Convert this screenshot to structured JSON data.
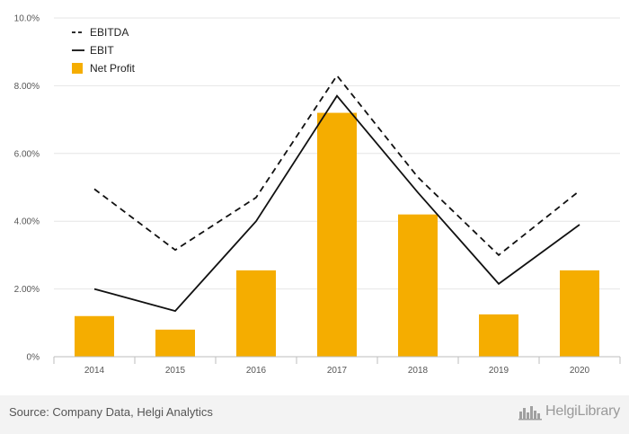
{
  "chart_data": {
    "type": "bar",
    "categories": [
      "2014",
      "2015",
      "2016",
      "2017",
      "2018",
      "2019",
      "2020"
    ],
    "series": [
      {
        "name": "EBITDA",
        "type": "line",
        "style": "dashed",
        "color": "#111111",
        "values": [
          4.95,
          3.15,
          4.7,
          8.3,
          5.3,
          3.0,
          4.9
        ]
      },
      {
        "name": "EBIT",
        "type": "line",
        "style": "solid",
        "color": "#111111",
        "values": [
          2.0,
          1.35,
          4.0,
          7.7,
          4.85,
          2.15,
          3.9
        ]
      },
      {
        "name": "Net Profit",
        "type": "bar",
        "color": "#f5ad00",
        "values": [
          1.2,
          0.8,
          2.55,
          7.2,
          4.2,
          1.25,
          2.55
        ]
      }
    ],
    "yticks": [
      "0%",
      "2.00%",
      "4.00%",
      "6.00%",
      "8.00%",
      "10.0%"
    ],
    "ylim": [
      0,
      10
    ],
    "grid": true,
    "legend_position": "top-left"
  },
  "footer": {
    "source": "Source: Company Data, Helgi Analytics",
    "brand": "HelgiLibrary"
  },
  "colors": {
    "bar": "#f5ad00",
    "line": "#111111",
    "grid": "#e6e6e6",
    "footer_bg": "#f3f3f3"
  }
}
